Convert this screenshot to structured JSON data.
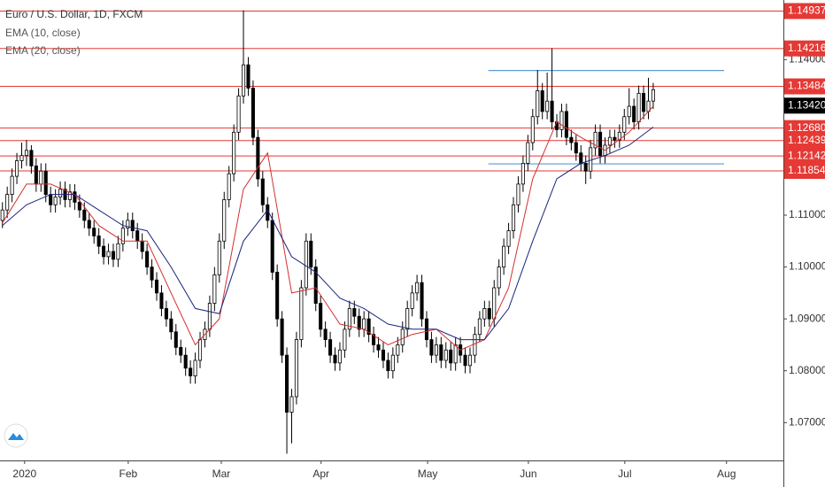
{
  "chart_data": {
    "type": "candlestick",
    "title": "Euro / U.S. Dollar, 1D, FXCM",
    "xlim": [
      -0.5,
      162
    ],
    "ylim": [
      1.0627,
      1.1515
    ],
    "yticks": [
      {
        "value": 1.07,
        "label": "1.07000"
      },
      {
        "value": 1.08,
        "label": "1.08000"
      },
      {
        "value": 1.09,
        "label": "1.09000"
      },
      {
        "value": 1.1,
        "label": "1.10000"
      },
      {
        "value": 1.11,
        "label": "1.11000"
      },
      {
        "value": 1.14,
        "label": "1.14000"
      }
    ],
    "xticks": [
      {
        "value": 4.6,
        "label": "2020"
      },
      {
        "value": 26.1,
        "label": "Feb"
      },
      {
        "value": 45.4,
        "label": "Mar"
      },
      {
        "value": 66.1,
        "label": "Apr"
      },
      {
        "value": 88.2,
        "label": "May"
      },
      {
        "value": 109.1,
        "label": "Jun"
      },
      {
        "value": 129.1,
        "label": "Jul"
      },
      {
        "value": 150.2,
        "label": "Aug"
      }
    ],
    "up_color": "#ffffff",
    "down_color": "#000000",
    "ohlc": [
      [
        1.109,
        1.1125,
        1.1075,
        1.111
      ],
      [
        1.111,
        1.1155,
        1.1095,
        1.114
      ],
      [
        1.114,
        1.119,
        1.1125,
        1.1175
      ],
      [
        1.1175,
        1.122,
        1.116,
        1.1205
      ],
      [
        1.1205,
        1.124,
        1.119,
        1.1215
      ],
      [
        1.1215,
        1.1245,
        1.1195,
        1.1225
      ],
      [
        1.1225,
        1.1235,
        1.118,
        1.1195
      ],
      [
        1.1195,
        1.121,
        1.1145,
        1.116
      ],
      [
        1.116,
        1.12,
        1.1145,
        1.1185
      ],
      [
        1.1185,
        1.12,
        1.1125,
        1.114
      ],
      [
        1.114,
        1.1155,
        1.1105,
        1.112
      ],
      [
        1.112,
        1.115,
        1.1105,
        1.1135
      ],
      [
        1.1135,
        1.1165,
        1.112,
        1.115
      ],
      [
        1.115,
        1.1165,
        1.1115,
        1.113
      ],
      [
        1.113,
        1.116,
        1.1115,
        1.1145
      ],
      [
        1.1145,
        1.116,
        1.111,
        1.1125
      ],
      [
        1.1125,
        1.114,
        1.1095,
        1.111
      ],
      [
        1.111,
        1.1125,
        1.1075,
        1.109
      ],
      [
        1.109,
        1.1105,
        1.106,
        1.1075
      ],
      [
        1.1075,
        1.109,
        1.1045,
        1.106
      ],
      [
        1.106,
        1.1075,
        1.1025,
        1.104
      ],
      [
        1.104,
        1.1055,
        1.1005,
        1.102
      ],
      [
        1.102,
        1.1045,
        1.1005,
        1.103
      ],
      [
        1.103,
        1.1045,
        1.1,
        1.1015
      ],
      [
        1.1015,
        1.106,
        1.1,
        1.1045
      ],
      [
        1.1045,
        1.109,
        1.103,
        1.1075
      ],
      [
        1.1075,
        1.1105,
        1.106,
        1.109
      ],
      [
        1.109,
        1.1105,
        1.1055,
        1.107
      ],
      [
        1.107,
        1.1085,
        1.1035,
        1.105
      ],
      [
        1.105,
        1.1065,
        1.1015,
        1.103
      ],
      [
        1.103,
        1.1045,
        1.0985,
        1.1
      ],
      [
        1.1,
        1.1015,
        1.096,
        1.0975
      ],
      [
        1.0975,
        1.099,
        1.0935,
        1.095
      ],
      [
        1.095,
        1.0965,
        1.0905,
        1.092
      ],
      [
        1.092,
        1.0935,
        1.0885,
        1.09
      ],
      [
        1.09,
        1.0915,
        1.086,
        1.0875
      ],
      [
        1.0875,
        1.089,
        1.083,
        1.0845
      ],
      [
        1.0845,
        1.086,
        1.0815,
        1.083
      ],
      [
        1.083,
        1.0845,
        1.079,
        1.0805
      ],
      [
        1.0805,
        1.082,
        1.0775,
        1.079
      ],
      [
        1.079,
        1.0835,
        1.0775,
        1.082
      ],
      [
        1.082,
        1.0875,
        1.0805,
        1.086
      ],
      [
        1.086,
        1.0895,
        1.0845,
        1.088
      ],
      [
        1.088,
        1.0945,
        1.0865,
        1.093
      ],
      [
        1.093,
        1.1,
        1.0915,
        1.0985
      ],
      [
        1.0985,
        1.1065,
        1.097,
        1.105
      ],
      [
        1.105,
        1.1145,
        1.1035,
        1.113
      ],
      [
        1.113,
        1.1195,
        1.1115,
        1.118
      ],
      [
        1.118,
        1.1275,
        1.1165,
        1.126
      ],
      [
        1.126,
        1.1345,
        1.1245,
        1.133
      ],
      [
        1.133,
        1.1495,
        1.1315,
        1.139
      ],
      [
        1.139,
        1.1405,
        1.133,
        1.1345
      ],
      [
        1.1345,
        1.136,
        1.1235,
        1.125
      ],
      [
        1.125,
        1.1265,
        1.1155,
        1.117
      ],
      [
        1.117,
        1.1185,
        1.1105,
        1.112
      ],
      [
        1.112,
        1.1135,
        1.1075,
        1.109
      ],
      [
        1.109,
        1.1105,
        1.0975,
        1.099
      ],
      [
        1.099,
        1.1005,
        1.0885,
        1.09
      ],
      [
        1.09,
        1.0915,
        1.0815,
        1.083
      ],
      [
        1.083,
        1.0845,
        1.064,
        1.072
      ],
      [
        1.072,
        1.0765,
        1.066,
        1.075
      ],
      [
        1.075,
        1.0875,
        1.0735,
        1.086
      ],
      [
        1.086,
        1.0975,
        1.0845,
        1.096
      ],
      [
        1.096,
        1.1065,
        1.0945,
        1.105
      ],
      [
        1.105,
        1.1065,
        1.0985,
        1.1
      ],
      [
        1.1,
        1.1015,
        1.0915,
        1.093
      ],
      [
        1.093,
        1.0945,
        1.0865,
        1.088
      ],
      [
        1.088,
        1.0895,
        1.0845,
        1.086
      ],
      [
        1.086,
        1.0875,
        1.0815,
        1.083
      ],
      [
        1.083,
        1.0845,
        1.08,
        1.0815
      ],
      [
        1.0815,
        1.0855,
        1.08,
        1.084
      ],
      [
        1.084,
        1.0895,
        1.0825,
        1.088
      ],
      [
        1.088,
        1.0935,
        1.0865,
        1.092
      ],
      [
        1.092,
        1.0935,
        1.089,
        1.0905
      ],
      [
        1.0905,
        1.092,
        1.0865,
        1.088
      ],
      [
        1.088,
        1.0915,
        1.0865,
        1.09
      ],
      [
        1.09,
        1.0915,
        1.0855,
        1.087
      ],
      [
        1.087,
        1.0885,
        1.0835,
        1.085
      ],
      [
        1.085,
        1.0865,
        1.0825,
        1.084
      ],
      [
        1.084,
        1.0855,
        1.0805,
        1.082
      ],
      [
        1.082,
        1.0835,
        1.0785,
        1.08
      ],
      [
        1.08,
        1.0845,
        1.0785,
        1.083
      ],
      [
        1.083,
        1.0865,
        1.0815,
        1.085
      ],
      [
        1.085,
        1.0895,
        1.0835,
        1.088
      ],
      [
        1.088,
        1.0935,
        1.0865,
        1.092
      ],
      [
        1.092,
        1.0965,
        1.0905,
        1.095
      ],
      [
        1.095,
        1.0985,
        1.0935,
        1.097
      ],
      [
        1.097,
        1.0985,
        1.0885,
        1.09
      ],
      [
        1.09,
        1.0915,
        1.0845,
        1.086
      ],
      [
        1.086,
        1.0875,
        1.0815,
        1.083
      ],
      [
        1.083,
        1.0865,
        1.0815,
        1.085
      ],
      [
        1.085,
        1.0865,
        1.0805,
        1.082
      ],
      [
        1.082,
        1.0855,
        1.0805,
        1.084
      ],
      [
        1.084,
        1.0855,
        1.08,
        1.0815
      ],
      [
        1.0815,
        1.0865,
        1.08,
        1.085
      ],
      [
        1.085,
        1.0865,
        1.0815,
        1.083
      ],
      [
        1.083,
        1.0845,
        1.0795,
        1.081
      ],
      [
        1.081,
        1.0845,
        1.0795,
        1.083
      ],
      [
        1.083,
        1.0885,
        1.0815,
        1.087
      ],
      [
        1.087,
        1.0915,
        1.0855,
        1.09
      ],
      [
        1.09,
        1.0935,
        1.0885,
        1.092
      ],
      [
        1.092,
        1.0935,
        1.0885,
        1.09
      ],
      [
        1.09,
        1.0975,
        1.0885,
        1.096
      ],
      [
        1.096,
        1.1015,
        1.0945,
        1.1
      ],
      [
        1.1,
        1.1055,
        1.0985,
        1.104
      ],
      [
        1.104,
        1.1085,
        1.1025,
        1.107
      ],
      [
        1.107,
        1.1135,
        1.1055,
        1.112
      ],
      [
        1.112,
        1.1175,
        1.1105,
        1.116
      ],
      [
        1.116,
        1.1215,
        1.1145,
        1.12
      ],
      [
        1.12,
        1.1255,
        1.1185,
        1.124
      ],
      [
        1.124,
        1.1305,
        1.1225,
        1.129
      ],
      [
        1.129,
        1.138,
        1.1275,
        1.134
      ],
      [
        1.134,
        1.1355,
        1.1285,
        1.13
      ],
      [
        1.13,
        1.1375,
        1.1285,
        1.132
      ],
      [
        1.132,
        1.1422,
        1.1265,
        1.128
      ],
      [
        1.128,
        1.1295,
        1.125,
        1.1265
      ],
      [
        1.1265,
        1.1315,
        1.125,
        1.13
      ],
      [
        1.13,
        1.1315,
        1.1235,
        1.125
      ],
      [
        1.125,
        1.1265,
        1.1225,
        1.124
      ],
      [
        1.124,
        1.1255,
        1.1205,
        1.122
      ],
      [
        1.122,
        1.1235,
        1.1185,
        1.12
      ],
      [
        1.12,
        1.1215,
        1.116,
        1.1185
      ],
      [
        1.1185,
        1.1245,
        1.117,
        1.123
      ],
      [
        1.123,
        1.1275,
        1.1215,
        1.126
      ],
      [
        1.126,
        1.1275,
        1.12,
        1.1215
      ],
      [
        1.1215,
        1.125,
        1.12,
        1.1235
      ],
      [
        1.1235,
        1.1265,
        1.122,
        1.125
      ],
      [
        1.125,
        1.1265,
        1.123,
        1.1245
      ],
      [
        1.1245,
        1.1275,
        1.123,
        1.126
      ],
      [
        1.126,
        1.1305,
        1.1245,
        1.129
      ],
      [
        1.129,
        1.1345,
        1.1275,
        1.131
      ],
      [
        1.131,
        1.1325,
        1.1265,
        1.128
      ],
      [
        1.128,
        1.135,
        1.1265,
        1.1335
      ],
      [
        1.1335,
        1.135,
        1.1285,
        1.13
      ],
      [
        1.13,
        1.1365,
        1.1285,
        1.132
      ],
      [
        1.132,
        1.1355,
        1.1305,
        1.1342
      ]
    ],
    "series": [
      {
        "name": "EMA (10, close)",
        "color": "#d32f2f",
        "x": [
          0,
          5,
          10,
          15,
          20,
          25,
          30,
          35,
          40,
          45,
          50,
          55,
          60,
          65,
          70,
          75,
          80,
          85,
          90,
          95,
          100,
          105,
          110,
          115,
          120,
          125,
          130,
          135
        ],
        "values": [
          1.1085,
          1.116,
          1.116,
          1.114,
          1.108,
          1.105,
          1.105,
          1.095,
          1.085,
          1.09,
          1.115,
          1.122,
          1.095,
          1.096,
          1.089,
          1.088,
          1.085,
          1.087,
          1.088,
          1.084,
          1.086,
          1.096,
          1.117,
          1.128,
          1.125,
          1.1225,
          1.126,
          1.131
        ]
      },
      {
        "name": "EMA (20, close)",
        "color": "#1a237e",
        "x": [
          0,
          5,
          10,
          15,
          20,
          25,
          30,
          35,
          40,
          45,
          50,
          55,
          60,
          65,
          70,
          75,
          80,
          85,
          90,
          95,
          100,
          105,
          110,
          115,
          120,
          125,
          130,
          135
        ],
        "values": [
          1.108,
          1.112,
          1.114,
          1.114,
          1.111,
          1.108,
          1.107,
          1.1,
          1.092,
          1.091,
          1.105,
          1.111,
          1.102,
          1.099,
          1.094,
          1.092,
          1.089,
          1.088,
          1.088,
          1.086,
          1.086,
          1.092,
          1.105,
          1.117,
          1.12,
          1.1215,
          1.1235,
          1.127
        ]
      }
    ],
    "price_lines": {
      "color": "#e53935",
      "levels": [
        1.14937,
        1.14216,
        1.13484,
        {
          "value": 1.1268,
          "label": "1.12680"
        },
        1.12439,
        1.12142,
        1.11854
      ]
    },
    "range_lines": {
      "color": "#5b9bd5",
      "levels": [
        {
          "value": 1.1379,
          "from": 100.8,
          "to": 149.7
        },
        {
          "value": 1.1199,
          "from": 100.8,
          "to": 149.7
        }
      ]
    },
    "last_price": {
      "value": 1.1342,
      "label": "1.13420"
    }
  }
}
